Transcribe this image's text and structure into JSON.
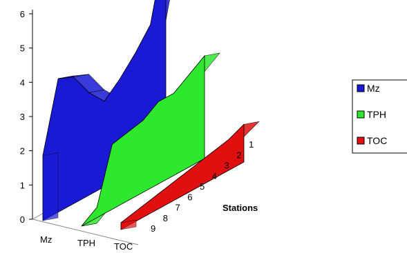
{
  "chart_data": {
    "type": "area",
    "title": "",
    "ylabel": "",
    "xlabel": "Stations",
    "ylim": [
      0,
      6
    ],
    "y_ticks": [
      "0",
      "1",
      "2",
      "3",
      "4",
      "5",
      "6"
    ],
    "stations": [
      "1",
      "2",
      "3",
      "4",
      "5",
      "6",
      "7",
      "8",
      "9"
    ],
    "series_axis_labels": [
      "Mz",
      "TPH",
      "TOC"
    ],
    "grid": false,
    "legend": "right",
    "series": [
      {
        "name": "Mz",
        "color": "#1a1ad4",
        "values": [
          6.2,
          4.0,
          3.4,
          2.9,
          2.5,
          3.0,
          3.7,
          3.9,
          1.9
        ]
      },
      {
        "name": "TPH",
        "color": "#2ee82e",
        "values": [
          3.0,
          2.7,
          2.4,
          2.4,
          2.1,
          2.0,
          1.9,
          0.3,
          0.0
        ]
      },
      {
        "name": "TOC",
        "color": "#e01010",
        "values": [
          1.1,
          0.9,
          0.8,
          0.7,
          0.6,
          0.5,
          0.4,
          0.3,
          0.2
        ]
      }
    ]
  }
}
